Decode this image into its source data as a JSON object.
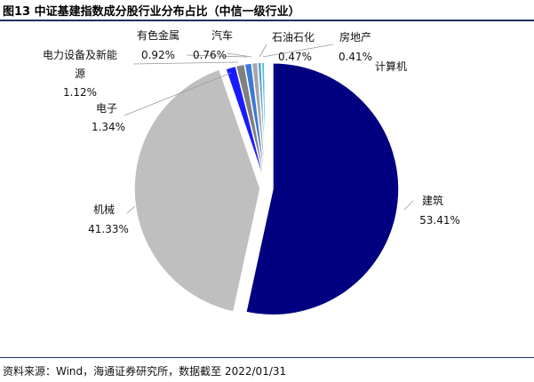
{
  "title": "图13 中证基建指数成分股行业分布占比（中信一级行业）",
  "source": "资料来源：Wind，海通证券研究所，数据截至 2022/01/31",
  "chart_data": {
    "type": "pie",
    "title": "图13 中证基建指数成分股行业分布占比（中信一级行业）",
    "start_angle_deg": 0,
    "direction": "clockwise",
    "slices": [
      {
        "name": "建筑",
        "value": 53.41,
        "label": "53.41%",
        "color": "#000080"
      },
      {
        "name": "机械",
        "value": 41.33,
        "label": "41.33%",
        "color": "#bfbfbf"
      },
      {
        "name": "电子",
        "value": 1.34,
        "label": "1.34%",
        "color": "#1a1aff"
      },
      {
        "name": "电力设备及新能源",
        "value": 1.12,
        "label": "1.12%",
        "color": "#808080"
      },
      {
        "name": "有色金属",
        "value": 0.92,
        "label": "0.92%",
        "color": "#3c78d8"
      },
      {
        "name": "汽车",
        "value": 0.76,
        "label": "0.76%",
        "color": "#a6a6a6"
      },
      {
        "name": "石油石化",
        "value": 0.47,
        "label": "0.47%",
        "color": "#5b9bd5"
      },
      {
        "name": "房地产",
        "value": 0.41,
        "label": "0.41%",
        "color": "#4fc3d9"
      },
      {
        "name": "计算机",
        "value": 0.24,
        "label": "",
        "color": "#ffffff"
      }
    ]
  }
}
